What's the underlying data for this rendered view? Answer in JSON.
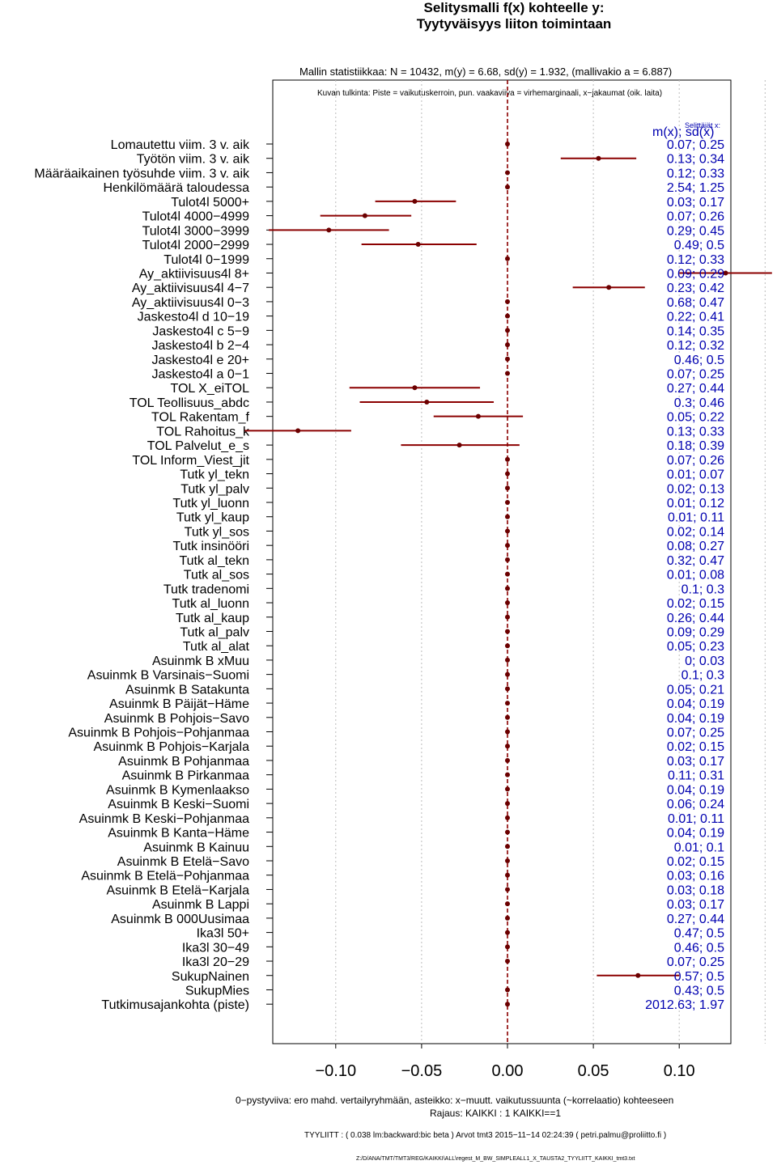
{
  "header": {
    "title_line1": "Selitysmalli f(x) kohteelle y:",
    "title_line2": "Tyytyväisyys liiton toimintaan",
    "stats": "Mallin statistiikkaa: N = 10432, m(y) = 6.68, sd(y) = 1.932, (mallivakio a = 6.887)",
    "legend_note": "Kuvan tulkinta: Piste = vaikutuskerroin, pun. vaakaviiva = virhemarginaali, x−jakaumat (oik. laita)"
  },
  "right_panel": {
    "small_label": "Selittäjät x:",
    "column_header": "m(x); sd(x)"
  },
  "footer": {
    "line1": "0−pystyviiva: ero mahd. vertailyryhmään, asteikko: x−muutt. vaikutussuunta (~korrelaatio) kohteeseen",
    "line2": "Rajaus: KAIKKI : 1  KAIKKI==1",
    "line3": "TYYLIITT : ( 0.038 lm:backward:bic beta )    Arvot tmt3 2015−11−14 02:24:39 ( petri.palmu@proliitto.fi )",
    "line4": "Z:/D/ANA/TMT/TMT3/REG/KAIKKI\\ALL\\regest_M_BW_SIMPLEALL1_X_TAUSTA2_TYYLIITT_KAIKKI_tmt3.txt"
  },
  "colors": {
    "estimate": "#6b0000",
    "ci_line": "#8b0000",
    "zero_line": "#8b0000",
    "stat_text": "#0000b0",
    "grid": "#bbbbbb"
  },
  "chart_data": {
    "type": "forest",
    "title": "Selitysmalli f(x) kohteelle y: Tyytyväisyys liiton toimintaan",
    "xlim": [
      -0.14,
      0.13
    ],
    "xticks": [
      -0.1,
      -0.05,
      0.0,
      0.05,
      0.1
    ],
    "xtick_labels": [
      "−0.10",
      "−0.05",
      "0.00",
      "0.05",
      "0.10"
    ],
    "grid": true,
    "zero_line": 0,
    "rows": [
      {
        "label": "Lomautettu viim. 3 v. aik",
        "estimate": 0,
        "lo": 0,
        "hi": 0,
        "stat": "0.07; 0.25"
      },
      {
        "label": "Työtön viim. 3 v. aik",
        "estimate": 0.053,
        "lo": 0.031,
        "hi": 0.075,
        "stat": "0.13; 0.34"
      },
      {
        "label": "Määräaikainen työsuhde viim. 3 v. aik",
        "estimate": 0,
        "lo": 0,
        "hi": 0,
        "stat": "0.12; 0.33"
      },
      {
        "label": "Henkilömäärä taloudessa",
        "estimate": 0,
        "lo": 0,
        "hi": 0,
        "stat": "2.54; 1.25"
      },
      {
        "label": "Tulot4l 5000+",
        "estimate": -0.054,
        "lo": -0.077,
        "hi": -0.03,
        "stat": "0.03; 0.17"
      },
      {
        "label": "Tulot4l 4000−4999",
        "estimate": -0.083,
        "lo": -0.109,
        "hi": -0.056,
        "stat": "0.07; 0.26"
      },
      {
        "label": "Tulot4l 3000−3999",
        "estimate": -0.104,
        "lo": -0.139,
        "hi": -0.069,
        "stat": "0.29; 0.45"
      },
      {
        "label": "Tulot4l 2000−2999",
        "estimate": -0.052,
        "lo": -0.085,
        "hi": -0.018,
        "stat": "0.49; 0.5"
      },
      {
        "label": "Tulot4l 0−1999",
        "estimate": 0,
        "lo": 0,
        "hi": 0,
        "stat": "0.12; 0.33"
      },
      {
        "label": "Ay_aktiivisuus4l 8+",
        "estimate": 0.127,
        "lo": 0.1,
        "hi": 0.154,
        "stat": "0.09; 0.29"
      },
      {
        "label": "Ay_aktiivisuus4l 4−7",
        "estimate": 0.059,
        "lo": 0.038,
        "hi": 0.08,
        "stat": "0.23; 0.42"
      },
      {
        "label": "Ay_aktiivisuus4l 0−3",
        "estimate": 0,
        "lo": 0,
        "hi": 0,
        "stat": "0.68; 0.47"
      },
      {
        "label": "Jaskesto4l d 10−19",
        "estimate": 0,
        "lo": 0,
        "hi": 0,
        "stat": "0.22; 0.41"
      },
      {
        "label": "Jaskesto4l c 5−9",
        "estimate": 0,
        "lo": 0,
        "hi": 0,
        "stat": "0.14; 0.35"
      },
      {
        "label": "Jaskesto4l b 2−4",
        "estimate": 0,
        "lo": 0,
        "hi": 0,
        "stat": "0.12; 0.32"
      },
      {
        "label": "Jaskesto4l e 20+",
        "estimate": 0,
        "lo": 0,
        "hi": 0,
        "stat": "0.46; 0.5"
      },
      {
        "label": "Jaskesto4l a 0−1",
        "estimate": 0,
        "lo": 0,
        "hi": 0,
        "stat": "0.07; 0.25"
      },
      {
        "label": "TOL X_eiTOL",
        "estimate": -0.054,
        "lo": -0.092,
        "hi": -0.016,
        "stat": "0.27; 0.44"
      },
      {
        "label": "TOL Teollisuus_abdc",
        "estimate": -0.047,
        "lo": -0.086,
        "hi": -0.008,
        "stat": "0.3; 0.46"
      },
      {
        "label": "TOL Rakentam_f",
        "estimate": -0.017,
        "lo": -0.043,
        "hi": 0.009,
        "stat": "0.05; 0.22"
      },
      {
        "label": "TOL Rahoitus_k",
        "estimate": -0.122,
        "lo": -0.153,
        "hi": -0.091,
        "stat": "0.13; 0.33"
      },
      {
        "label": "TOL Palvelut_e_s",
        "estimate": -0.028,
        "lo": -0.062,
        "hi": 0.007,
        "stat": "0.18; 0.39"
      },
      {
        "label": "TOL Inform_Viest_jit",
        "estimate": 0,
        "lo": 0,
        "hi": 0,
        "stat": "0.07; 0.26"
      },
      {
        "label": "Tutk yl_tekn",
        "estimate": 0,
        "lo": 0,
        "hi": 0,
        "stat": "0.01; 0.07"
      },
      {
        "label": "Tutk yl_palv",
        "estimate": 0,
        "lo": 0,
        "hi": 0,
        "stat": "0.02; 0.13"
      },
      {
        "label": "Tutk yl_luonn",
        "estimate": 0,
        "lo": 0,
        "hi": 0,
        "stat": "0.01; 0.12"
      },
      {
        "label": "Tutk yl_kaup",
        "estimate": 0,
        "lo": 0,
        "hi": 0,
        "stat": "0.01; 0.11"
      },
      {
        "label": "Tutk yl_sos",
        "estimate": 0,
        "lo": 0,
        "hi": 0,
        "stat": "0.02; 0.14"
      },
      {
        "label": "Tutk insinööri",
        "estimate": 0,
        "lo": 0,
        "hi": 0,
        "stat": "0.08; 0.27"
      },
      {
        "label": "Tutk al_tekn",
        "estimate": 0,
        "lo": 0,
        "hi": 0,
        "stat": "0.32; 0.47"
      },
      {
        "label": "Tutk al_sos",
        "estimate": 0,
        "lo": 0,
        "hi": 0,
        "stat": "0.01; 0.08"
      },
      {
        "label": "Tutk tradenomi",
        "estimate": 0,
        "lo": 0,
        "hi": 0,
        "stat": "0.1; 0.3"
      },
      {
        "label": "Tutk al_luonn",
        "estimate": 0,
        "lo": 0,
        "hi": 0,
        "stat": "0.02; 0.15"
      },
      {
        "label": "Tutk al_kaup",
        "estimate": 0,
        "lo": 0,
        "hi": 0,
        "stat": "0.26; 0.44"
      },
      {
        "label": "Tutk al_palv",
        "estimate": 0,
        "lo": 0,
        "hi": 0,
        "stat": "0.09; 0.29"
      },
      {
        "label": "Tutk al_alat",
        "estimate": 0,
        "lo": 0,
        "hi": 0,
        "stat": "0.05; 0.23"
      },
      {
        "label": "Asuinmk B xMuu",
        "estimate": 0,
        "lo": 0,
        "hi": 0,
        "stat": "0; 0.03"
      },
      {
        "label": "Asuinmk B  Varsinais−Suomi",
        "estimate": 0,
        "lo": 0,
        "hi": 0,
        "stat": "0.1; 0.3"
      },
      {
        "label": "Asuinmk B  Satakunta",
        "estimate": 0,
        "lo": 0,
        "hi": 0,
        "stat": "0.05; 0.21"
      },
      {
        "label": "Asuinmk B  Päijät−Häme",
        "estimate": 0,
        "lo": 0,
        "hi": 0,
        "stat": "0.04; 0.19"
      },
      {
        "label": "Asuinmk B  Pohjois−Savo",
        "estimate": 0,
        "lo": 0,
        "hi": 0,
        "stat": "0.04; 0.19"
      },
      {
        "label": "Asuinmk B  Pohjois−Pohjanmaa",
        "estimate": 0,
        "lo": 0,
        "hi": 0,
        "stat": "0.07; 0.25"
      },
      {
        "label": "Asuinmk B  Pohjois−Karjala",
        "estimate": 0,
        "lo": 0,
        "hi": 0,
        "stat": "0.02; 0.15"
      },
      {
        "label": "Asuinmk B  Pohjanmaa",
        "estimate": 0,
        "lo": 0,
        "hi": 0,
        "stat": "0.03; 0.17"
      },
      {
        "label": "Asuinmk B  Pirkanmaa",
        "estimate": 0,
        "lo": 0,
        "hi": 0,
        "stat": "0.11; 0.31"
      },
      {
        "label": "Asuinmk B  Kymenlaakso",
        "estimate": 0,
        "lo": 0,
        "hi": 0,
        "stat": "0.04; 0.19"
      },
      {
        "label": "Asuinmk B  Keski−Suomi",
        "estimate": 0,
        "lo": 0,
        "hi": 0,
        "stat": "0.06; 0.24"
      },
      {
        "label": "Asuinmk B  Keski−Pohjanmaa",
        "estimate": 0,
        "lo": 0,
        "hi": 0,
        "stat": "0.01; 0.11"
      },
      {
        "label": "Asuinmk B  Kanta−Häme",
        "estimate": 0,
        "lo": 0,
        "hi": 0,
        "stat": "0.04; 0.19"
      },
      {
        "label": "Asuinmk B  Kainuu",
        "estimate": 0,
        "lo": 0,
        "hi": 0,
        "stat": "0.01; 0.1"
      },
      {
        "label": "Asuinmk B  Etelä−Savo",
        "estimate": 0,
        "lo": 0,
        "hi": 0,
        "stat": "0.02; 0.15"
      },
      {
        "label": "Asuinmk B  Etelä−Pohjanmaa",
        "estimate": 0,
        "lo": 0,
        "hi": 0,
        "stat": "0.03; 0.16"
      },
      {
        "label": "Asuinmk B  Etelä−Karjala",
        "estimate": 0,
        "lo": 0,
        "hi": 0,
        "stat": "0.03; 0.18"
      },
      {
        "label": "Asuinmk B  Lappi",
        "estimate": 0,
        "lo": 0,
        "hi": 0,
        "stat": "0.03; 0.17"
      },
      {
        "label": "Asuinmk B  000Uusimaa",
        "estimate": 0,
        "lo": 0,
        "hi": 0,
        "stat": "0.27; 0.44"
      },
      {
        "label": "Ika3l 50+",
        "estimate": 0,
        "lo": 0,
        "hi": 0,
        "stat": "0.47; 0.5"
      },
      {
        "label": "Ika3l 30−49",
        "estimate": 0,
        "lo": 0,
        "hi": 0,
        "stat": "0.46; 0.5"
      },
      {
        "label": "Ika3l 20−29",
        "estimate": 0,
        "lo": 0,
        "hi": 0,
        "stat": "0.07; 0.25"
      },
      {
        "label": "SukupNainen",
        "estimate": 0.076,
        "lo": 0.052,
        "hi": 0.1,
        "stat": "0.57; 0.5"
      },
      {
        "label": "SukupMies",
        "estimate": 0,
        "lo": 0,
        "hi": 0,
        "stat": "0.43; 0.5"
      },
      {
        "label": "Tutkimusajankohta (piste)",
        "estimate": 0,
        "lo": 0,
        "hi": 0,
        "stat": "2012.63; 1.97"
      }
    ]
  }
}
